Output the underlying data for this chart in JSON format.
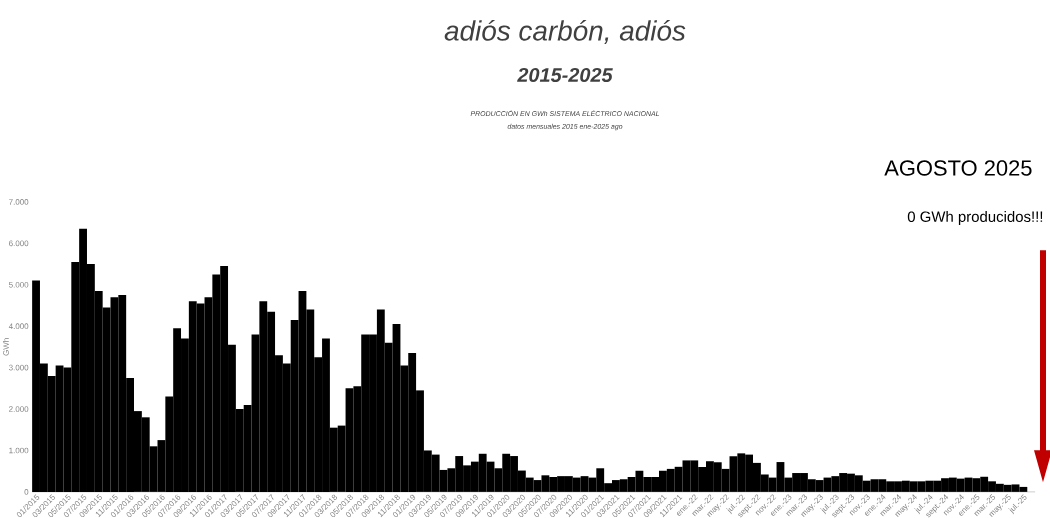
{
  "chart_data": {
    "type": "bar",
    "title": "adiós carbón, adiós",
    "subtitle": "2015-2025",
    "ylabel": "GWh",
    "annotations": [
      "PRODUCCIÓN EN GWh SISTEMA ELÉCTRICO NACIONAL",
      "datos mensuales 2015 ene-2025 ago",
      "AGOSTO 2025",
      "0 GWh producidos!!!"
    ],
    "categories": [
      "01/2015",
      null,
      "03/2015",
      null,
      "05/2015",
      null,
      "07/2015",
      null,
      "09/2015",
      null,
      "11/2015",
      null,
      "01/2016",
      null,
      "03/2016",
      null,
      "05/2016",
      null,
      "07/2016",
      null,
      "09/2016",
      null,
      "11/2016",
      null,
      "01/2017",
      null,
      "03/2017",
      null,
      "05/2017",
      null,
      "07/2017",
      null,
      "09/2017",
      null,
      "11/2017",
      null,
      "01/2018",
      null,
      "03/2018",
      null,
      "05/2018",
      null,
      "07/2018",
      null,
      "09/2018",
      null,
      "11/2018",
      null,
      "01/2019",
      null,
      "03/2019",
      null,
      "05/2019",
      null,
      "07/2019",
      null,
      "09/2019",
      null,
      "11/2019",
      null,
      "01/2020",
      null,
      "03/2020",
      null,
      "05/2020",
      null,
      "07/2020",
      null,
      "09/2020",
      null,
      "11/2020",
      null,
      "01/2021",
      null,
      "03/2021",
      null,
      "05/2021",
      null,
      "07/2021",
      null,
      "09/2021",
      null,
      "11/2021",
      null,
      "ene.-22",
      null,
      "mar.-22",
      null,
      "may.-22",
      null,
      "jul.-22",
      null,
      "sept.-22",
      null,
      "nov.-22",
      null,
      "ene.-23",
      null,
      "mar.-23",
      null,
      "may.-23",
      null,
      "jul.-23",
      null,
      "sept.-23",
      null,
      "nov.-23",
      null,
      "ene.-24",
      null,
      "mar.-24",
      null,
      "may.-24",
      null,
      "jul.-24",
      null,
      "sept.-24",
      null,
      "nov.-24",
      null,
      "ene.-25",
      null,
      "mar.-25",
      null,
      "may.-25",
      null,
      "jul.-25",
      null
    ],
    "values": [
      5100,
      3100,
      2800,
      3050,
      3000,
      5550,
      6350,
      5500,
      4850,
      4450,
      4700,
      4750,
      2750,
      1950,
      1800,
      1100,
      1250,
      2300,
      3950,
      3700,
      4600,
      4550,
      4700,
      5250,
      5450,
      3550,
      2000,
      2100,
      3800,
      4600,
      4350,
      3300,
      3100,
      4150,
      4850,
      4400,
      3250,
      3700,
      1550,
      1600,
      2500,
      2550,
      3800,
      3800,
      4400,
      3600,
      4050,
      3050,
      3350,
      2450,
      1000,
      900,
      530,
      570,
      865,
      640,
      730,
      920,
      730,
      570,
      920,
      865,
      515,
      345,
      285,
      400,
      360,
      380,
      380,
      345,
      380,
      345,
      570,
      210,
      285,
      305,
      360,
      510,
      360,
      360,
      510,
      555,
      605,
      760,
      760,
      600,
      740,
      715,
      555,
      860,
      930,
      900,
      700,
      420,
      345,
      720,
      345,
      455,
      455,
      305,
      285,
      345,
      380,
      455,
      440,
      400,
      270,
      305,
      305,
      255,
      255,
      270,
      255,
      255,
      270,
      270,
      330,
      345,
      320,
      345,
      330,
      365,
      255,
      195,
      170,
      180,
      120,
      0
    ],
    "color": "#000000",
    "ylim": [
      0,
      7000
    ],
    "yticks": [
      0,
      {
        "value": 1000,
        "label": "1.000"
      },
      {
        "value": 2000,
        "label": "2.000"
      },
      {
        "value": 3000,
        "label": "3.000"
      },
      {
        "value": 4000,
        "label": "4.000"
      },
      {
        "value": 5000,
        "label": "5.000"
      },
      {
        "value": 6000,
        "label": "6.000"
      },
      {
        "value": 7000,
        "label": "7.000"
      }
    ]
  }
}
